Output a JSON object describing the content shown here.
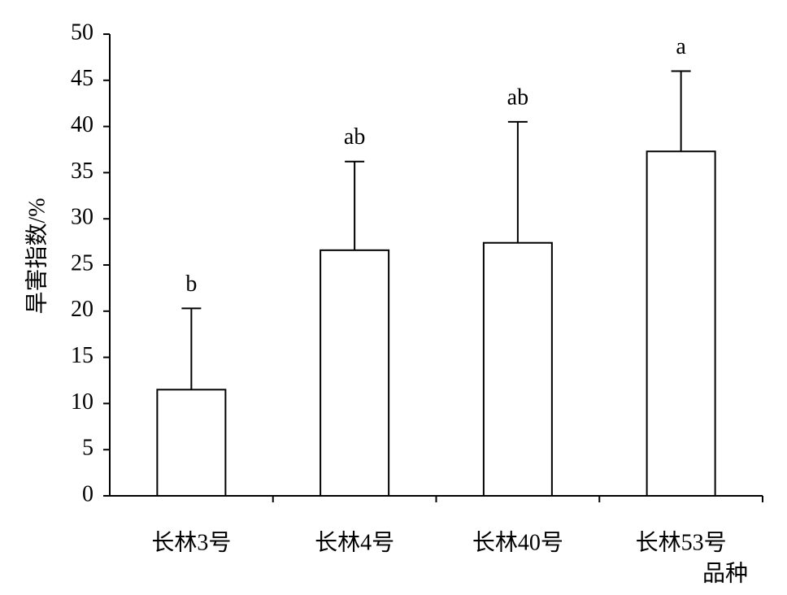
{
  "chart_data": {
    "type": "bar",
    "y_label": "旱害指数/%",
    "x_label": "品种",
    "categories": [
      "长林3号",
      "长林4号",
      "长林40号",
      "长林53号"
    ],
    "values": [
      11.5,
      26.6,
      27.4,
      37.3
    ],
    "errors": [
      8.8,
      9.6,
      13.1,
      8.7
    ],
    "significance_labels": [
      "b",
      "ab",
      "ab",
      "a"
    ],
    "color": "#ffffff",
    "ylim": [
      0,
      50
    ],
    "yticks": [
      0,
      5,
      10,
      15,
      20,
      25,
      30,
      35,
      40,
      45,
      50
    ]
  }
}
